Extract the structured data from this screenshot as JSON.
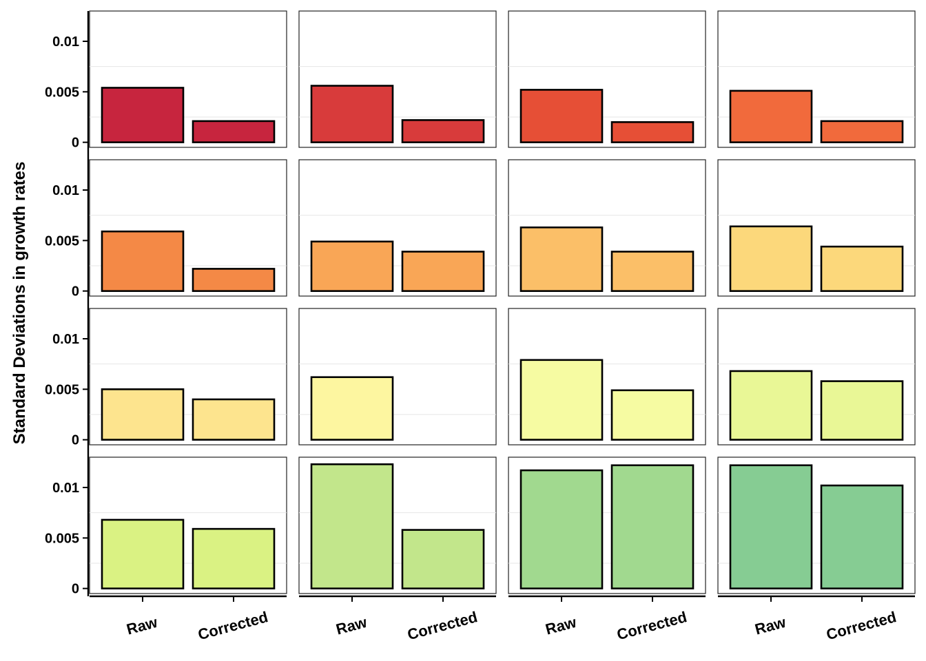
{
  "chart_data": {
    "type": "bar",
    "layout": "facet grid, 4 rows x 4 columns, shared axes",
    "ylabel": "Standard Deviations in growth rates",
    "xlabel": "",
    "categories": [
      "Raw",
      "Corrected"
    ],
    "ylim": [
      -0.0005,
      0.013
    ],
    "yticks": [
      0,
      0.005,
      0.01
    ],
    "ytick_labels": [
      "0",
      "0.005",
      "0.01"
    ],
    "grid": true,
    "legend": "none",
    "panels": [
      {
        "values": [
          0.0054,
          0.0021
        ],
        "color": "#c7253e"
      },
      {
        "values": [
          0.0056,
          0.0022
        ],
        "color": "#d83b3b"
      },
      {
        "values": [
          0.0052,
          0.002
        ],
        "color": "#e64f36"
      },
      {
        "values": [
          0.0051,
          0.0021
        ],
        "color": "#f16a3c"
      },
      {
        "values": [
          0.0059,
          0.0022
        ],
        "color": "#f48946"
      },
      {
        "values": [
          0.0049,
          0.0039
        ],
        "color": "#f9a656"
      },
      {
        "values": [
          0.0063,
          0.0039
        ],
        "color": "#fbbf68"
      },
      {
        "values": [
          0.0064,
          0.0044
        ],
        "color": "#fcd87b"
      },
      {
        "values": [
          0.005,
          0.004
        ],
        "color": "#fde48e"
      },
      {
        "values": [
          0.0062,
          0.0
        ],
        "color": "#fdf6a0"
      },
      {
        "values": [
          0.0079,
          0.0049
        ],
        "color": "#f6fba2"
      },
      {
        "values": [
          0.0068,
          0.0058
        ],
        "color": "#e9f796"
      },
      {
        "values": [
          0.0068,
          0.0059
        ],
        "color": "#daf283"
      },
      {
        "values": [
          0.0123,
          0.0058
        ],
        "color": "#c2e68b"
      },
      {
        "values": [
          0.0117,
          0.0122
        ],
        "color": "#a1d98f"
      },
      {
        "values": [
          0.0122,
          0.0102
        ],
        "color": "#86cc93"
      }
    ]
  }
}
